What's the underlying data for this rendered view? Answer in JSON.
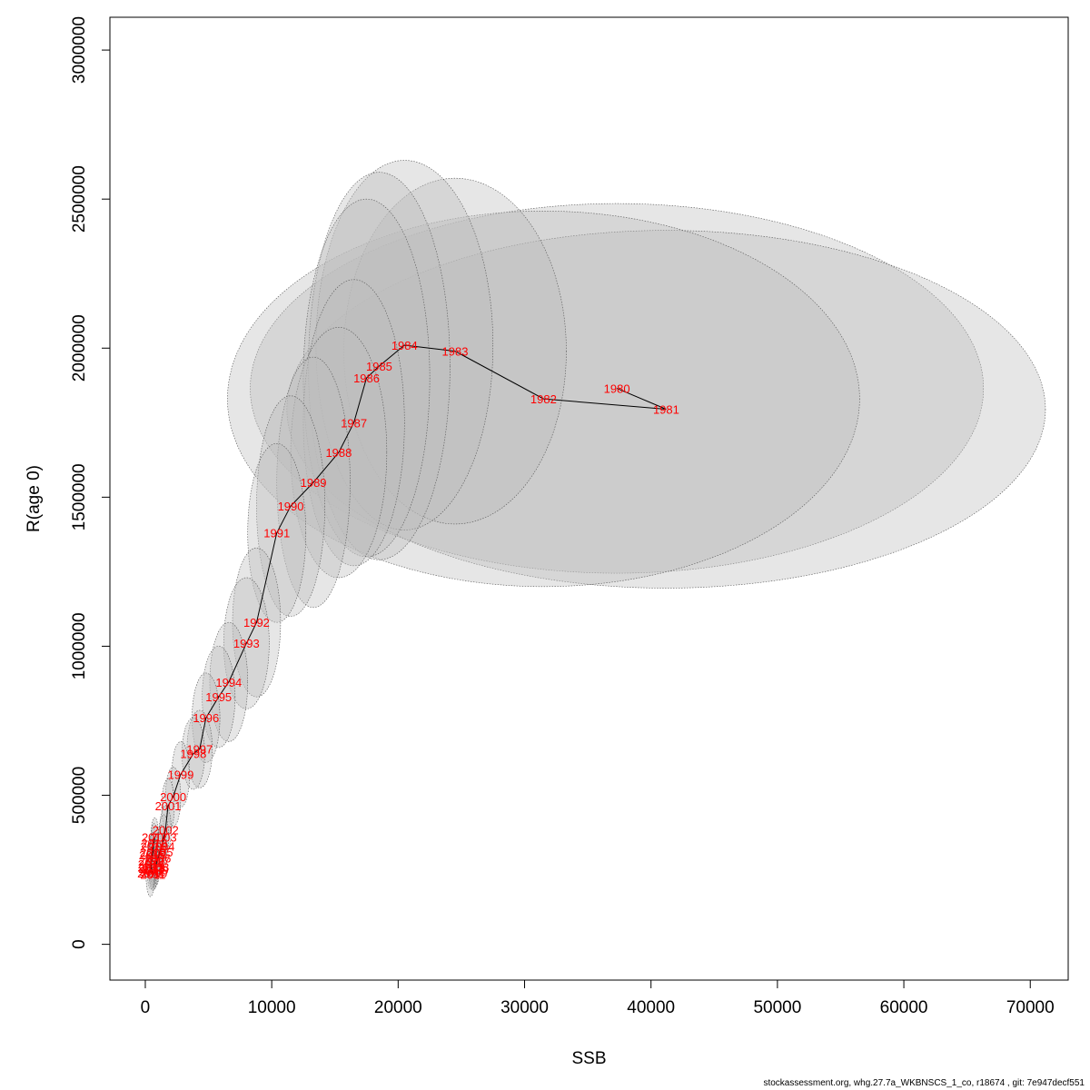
{
  "chart_data": {
    "type": "scatter",
    "title": "",
    "xlabel": "SSB",
    "ylabel": "R(age 0)",
    "xlim": [
      -2800,
      73000
    ],
    "ylim": [
      -120000,
      3110000
    ],
    "xticks": [
      0,
      10000,
      20000,
      30000,
      40000,
      50000,
      60000,
      70000
    ],
    "yticks": [
      0,
      500000,
      1000000,
      1500000,
      2000000,
      2500000,
      3000000
    ],
    "grid": false,
    "legend": "none",
    "point_label_color": "#ff0000",
    "line_color": "#000000",
    "ellipse_fill": "#bebebe",
    "points": [
      {
        "year": "1980",
        "x": 37300,
        "y": 1865000,
        "rx": 29000,
        "ry": 620000
      },
      {
        "year": "1981",
        "x": 41200,
        "y": 1795000,
        "rx": 30000,
        "ry": 600000
      },
      {
        "year": "1982",
        "x": 31500,
        "y": 1830000,
        "rx": 25000,
        "ry": 630000
      },
      {
        "year": "1983",
        "x": 24500,
        "y": 1990000,
        "rx": 8800,
        "ry": 580000
      },
      {
        "year": "1984",
        "x": 20500,
        "y": 2010000,
        "rx": 7000,
        "ry": 620000
      },
      {
        "year": "1985",
        "x": 18500,
        "y": 1940000,
        "rx": 5600,
        "ry": 650000
      },
      {
        "year": "1986",
        "x": 17500,
        "y": 1900000,
        "rx": 5000,
        "ry": 600000
      },
      {
        "year": "1987",
        "x": 16500,
        "y": 1750000,
        "rx": 4000,
        "ry": 480000
      },
      {
        "year": "1988",
        "x": 15300,
        "y": 1650000,
        "rx": 3800,
        "ry": 420000
      },
      {
        "year": "1989",
        "x": 13300,
        "y": 1550000,
        "rx": 2900,
        "ry": 420000
      },
      {
        "year": "1990",
        "x": 11500,
        "y": 1470000,
        "rx": 2700,
        "ry": 370000
      },
      {
        "year": "1991",
        "x": 10400,
        "y": 1380000,
        "rx": 2300,
        "ry": 300000
      },
      {
        "year": "1992",
        "x": 8800,
        "y": 1080000,
        "rx": 1900,
        "ry": 250000
      },
      {
        "year": "1993",
        "x": 8000,
        "y": 1010000,
        "rx": 1800,
        "ry": 220000
      },
      {
        "year": "1994",
        "x": 6600,
        "y": 880000,
        "rx": 1500,
        "ry": 200000
      },
      {
        "year": "1995",
        "x": 5800,
        "y": 830000,
        "rx": 1300,
        "ry": 170000
      },
      {
        "year": "1996",
        "x": 4800,
        "y": 760000,
        "rx": 1100,
        "ry": 150000
      },
      {
        "year": "1997",
        "x": 4300,
        "y": 655000,
        "rx": 1000,
        "ry": 130000
      },
      {
        "year": "1998",
        "x": 3800,
        "y": 640000,
        "rx": 900,
        "ry": 120000
      },
      {
        "year": "1999",
        "x": 2800,
        "y": 570000,
        "rx": 700,
        "ry": 110000
      },
      {
        "year": "2000",
        "x": 2200,
        "y": 495000,
        "rx": 600,
        "ry": 100000
      },
      {
        "year": "2001",
        "x": 1800,
        "y": 465000,
        "rx": 500,
        "ry": 90000
      },
      {
        "year": "2002",
        "x": 1600,
        "y": 385000,
        "rx": 450,
        "ry": 80000
      },
      {
        "year": "2003",
        "x": 1450,
        "y": 360000,
        "rx": 400,
        "ry": 75000
      },
      {
        "year": "2004",
        "x": 1300,
        "y": 330000,
        "rx": 380,
        "ry": 70000
      },
      {
        "year": "2005",
        "x": 1150,
        "y": 310000,
        "rx": 350,
        "ry": 65000
      },
      {
        "year": "2006",
        "x": 1000,
        "y": 290000,
        "rx": 330,
        "ry": 60000
      },
      {
        "year": "2007",
        "x": 900,
        "y": 280000,
        "rx": 300,
        "ry": 60000
      },
      {
        "year": "2008",
        "x": 850,
        "y": 260000,
        "rx": 300,
        "ry": 58000
      },
      {
        "year": "2009",
        "x": 800,
        "y": 250000,
        "rx": 300,
        "ry": 55000
      },
      {
        "year": "2010",
        "x": 700,
        "y": 240000,
        "rx": 280,
        "ry": 55000
      },
      {
        "year": "2011",
        "x": 600,
        "y": 235000,
        "rx": 280,
        "ry": 55000
      },
      {
        "year": "2012",
        "x": 550,
        "y": 245000,
        "rx": 280,
        "ry": 55000
      },
      {
        "year": "2013",
        "x": 500,
        "y": 255000,
        "rx": 280,
        "ry": 55000
      },
      {
        "year": "2014",
        "x": 450,
        "y": 270000,
        "rx": 280,
        "ry": 55000
      },
      {
        "year": "2015",
        "x": 550,
        "y": 300000,
        "rx": 280,
        "ry": 60000
      },
      {
        "year": "2016",
        "x": 650,
        "y": 330000,
        "rx": 280,
        "ry": 60000
      },
      {
        "year": "2017",
        "x": 750,
        "y": 360000,
        "rx": 300,
        "ry": 65000
      },
      {
        "year": "2018",
        "x": 700,
        "y": 340000,
        "rx": 300,
        "ry": 65000
      },
      {
        "year": "2019",
        "x": 600,
        "y": 310000,
        "rx": 300,
        "ry": 65000
      },
      {
        "year": "2020",
        "x": 500,
        "y": 280000,
        "rx": 300,
        "ry": 70000
      },
      {
        "year": "2021",
        "x": 450,
        "y": 260000,
        "rx": 320,
        "ry": 75000
      },
      {
        "year": "2022",
        "x": 400,
        "y": 240000,
        "rx": 350,
        "ry": 80000
      }
    ]
  },
  "footer": {
    "text": "stockassessment.org, whg.27.7a_WKBNSCS_1_co, r18674 , git: 7e947decf551"
  }
}
